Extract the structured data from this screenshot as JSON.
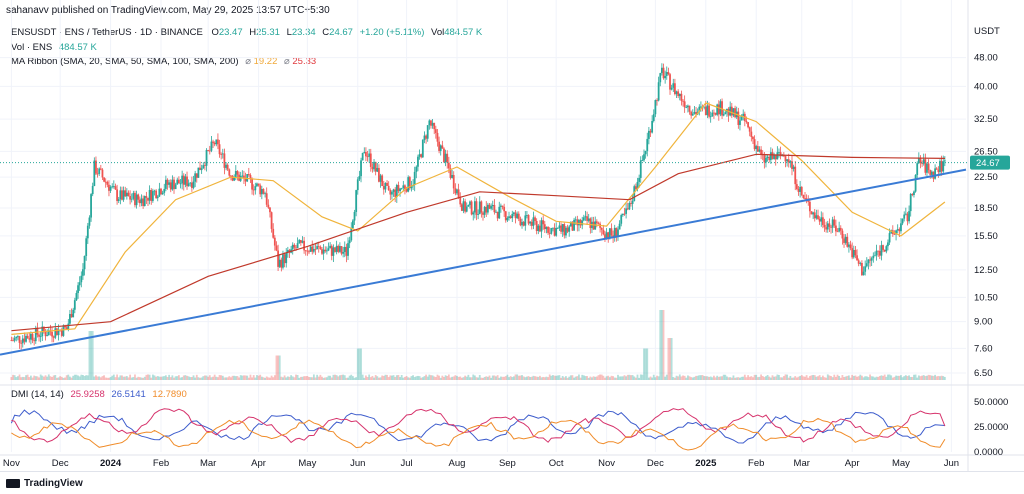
{
  "publisher_line": "sahanavv published on TradingView.com, May 29, 2025 13:57 UTC+5:30",
  "legend": {
    "symbol": "ENSUSDT · ENS / TetherUS · 1D · BINANCE",
    "o_label": "O",
    "o_value": "23.47",
    "h_label": "H",
    "h_value": "25.31",
    "l_label": "L",
    "l_value": "23.34",
    "c_label": "C",
    "c_value": "24.67",
    "change": "+1.20 (+5.11%)",
    "vol_label": "Vol",
    "vol_value": "484.57 K",
    "vol_row_label": "Vol · ENS",
    "vol_row_value": "484.57 K",
    "ma_label": "MA Ribbon (SMA, 20, SMA, 50, SMA, 100, SMA, 200)",
    "ma_symbol": "⌀",
    "ma_value_1": "19.22",
    "ma_value_2": "25.33"
  },
  "dmi_legend": {
    "label": "DMI (14, 14)",
    "v1": "25.9258",
    "v2": "26.5141",
    "v3": "12.7890"
  },
  "brand": "TradingView",
  "colors": {
    "up": "#26a69a",
    "down": "#ef5350",
    "ma_fast": "#f0b43c",
    "ma_slow": "#c0392b",
    "trendline": "#3a7bd5",
    "dmi_plus": "#3d5ccc",
    "dmi_minus": "#d6336c",
    "adx": "#f08c2a"
  },
  "chart_data": {
    "type": "candlestick",
    "timeframe": "1D",
    "price_axis_unit": "USDT",
    "price_ticks": [
      "48.00",
      "40.00",
      "32.50",
      "26.50",
      "22.50",
      "18.50",
      "15.50",
      "12.50",
      "10.50",
      "9.00",
      "7.60",
      "6.50"
    ],
    "price_scale": "log",
    "last_price": "24.67",
    "x_ticks": [
      "Nov",
      "Dec",
      "2024",
      "Feb",
      "Mar",
      "Apr",
      "May",
      "Jun",
      "Jul",
      "Aug",
      "Sep",
      "Oct",
      "Nov",
      "Dec",
      "2025",
      "Feb",
      "Mar",
      "Apr",
      "May",
      "Jun"
    ],
    "close_path": [
      [
        "2023-11-01",
        8.0
      ],
      [
        "2023-11-20",
        8.4
      ],
      [
        "2023-12-05",
        8.6
      ],
      [
        "2023-12-15",
        12.5
      ],
      [
        "2023-12-22",
        24.0
      ],
      [
        "2024-01-05",
        20.0
      ],
      [
        "2024-01-20",
        19.5
      ],
      [
        "2024-02-05",
        21.5
      ],
      [
        "2024-02-20",
        22.0
      ],
      [
        "2024-03-05",
        28.0
      ],
      [
        "2024-03-15",
        23.0
      ],
      [
        "2024-03-25",
        22.0
      ],
      [
        "2024-04-05",
        20.5
      ],
      [
        "2024-04-13",
        13.0
      ],
      [
        "2024-04-25",
        14.5
      ],
      [
        "2024-05-10",
        14.2
      ],
      [
        "2024-05-25",
        14.0
      ],
      [
        "2024-06-05",
        27.0
      ],
      [
        "2024-06-20",
        20.0
      ],
      [
        "2024-07-05",
        22.0
      ],
      [
        "2024-07-15",
        32.0
      ],
      [
        "2024-07-25",
        25.0
      ],
      [
        "2024-08-05",
        18.5
      ],
      [
        "2024-08-20",
        18.5
      ],
      [
        "2024-09-05",
        17.5
      ],
      [
        "2024-09-20",
        16.5
      ],
      [
        "2024-10-05",
        16.0
      ],
      [
        "2024-10-20",
        17.0
      ],
      [
        "2024-11-05",
        15.5
      ],
      [
        "2024-11-15",
        18.5
      ],
      [
        "2024-11-25",
        27.0
      ],
      [
        "2024-12-05",
        44.0
      ],
      [
        "2024-12-15",
        38.0
      ],
      [
        "2024-12-25",
        34.0
      ],
      [
        "2025-01-10",
        35.0
      ],
      [
        "2025-01-25",
        32.0
      ],
      [
        "2025-02-05",
        25.0
      ],
      [
        "2025-02-20",
        26.0
      ],
      [
        "2025-03-01",
        20.0
      ],
      [
        "2025-03-10",
        17.5
      ],
      [
        "2025-03-25",
        16.0
      ],
      [
        "2025-04-07",
        12.5
      ],
      [
        "2025-04-20",
        14.5
      ],
      [
        "2025-05-05",
        17.5
      ],
      [
        "2025-05-12",
        25.0
      ],
      [
        "2025-05-20",
        23.0
      ],
      [
        "2025-05-28",
        24.67
      ]
    ],
    "ma_fast_path": [
      [
        "2023-11-01",
        8.3
      ],
      [
        "2023-12-10",
        8.6
      ],
      [
        "2024-01-10",
        14.0
      ],
      [
        "2024-02-10",
        19.5
      ],
      [
        "2024-03-15",
        22.5
      ],
      [
        "2024-04-10",
        22.0
      ],
      [
        "2024-05-10",
        17.5
      ],
      [
        "2024-06-01",
        16.0
      ],
      [
        "2024-07-01",
        21.0
      ],
      [
        "2024-08-01",
        24.0
      ],
      [
        "2024-09-01",
        20.0
      ],
      [
        "2024-10-01",
        17.0
      ],
      [
        "2024-11-01",
        16.5
      ],
      [
        "2024-12-01",
        24.0
      ],
      [
        "2025-01-01",
        36.0
      ],
      [
        "2025-02-01",
        32.0
      ],
      [
        "2025-03-01",
        25.0
      ],
      [
        "2025-04-01",
        18.0
      ],
      [
        "2025-05-01",
        15.5
      ],
      [
        "2025-05-28",
        19.22
      ]
    ],
    "ma_slow_path": [
      [
        "2023-11-01",
        8.5
      ],
      [
        "2024-01-01",
        9.0
      ],
      [
        "2024-03-01",
        12.0
      ],
      [
        "2024-05-01",
        14.5
      ],
      [
        "2024-07-01",
        18.0
      ],
      [
        "2024-08-15",
        20.5
      ],
      [
        "2024-10-01",
        20.0
      ],
      [
        "2024-11-15",
        19.5
      ],
      [
        "2024-12-15",
        23.0
      ],
      [
        "2025-02-01",
        26.0
      ],
      [
        "2025-04-01",
        25.5
      ],
      [
        "2025-05-28",
        25.33
      ]
    ],
    "trendline": [
      [
        "2023-10-25",
        7.3
      ],
      [
        "2025-06-10",
        23.6
      ]
    ],
    "dmi_axis_ticks": [
      "50.0000",
      "25.0000",
      "0.0000"
    ],
    "dmi_last": {
      "plus": 25.9258,
      "minus": 26.5141,
      "adx": 12.789
    },
    "volume_spikes": [
      [
        "2023-12-20",
        0.7
      ],
      [
        "2024-04-13",
        0.35
      ],
      [
        "2024-06-02",
        0.45
      ],
      [
        "2024-11-25",
        0.45
      ],
      [
        "2024-12-05",
        1.0
      ],
      [
        "2024-12-10",
        0.6
      ]
    ]
  }
}
